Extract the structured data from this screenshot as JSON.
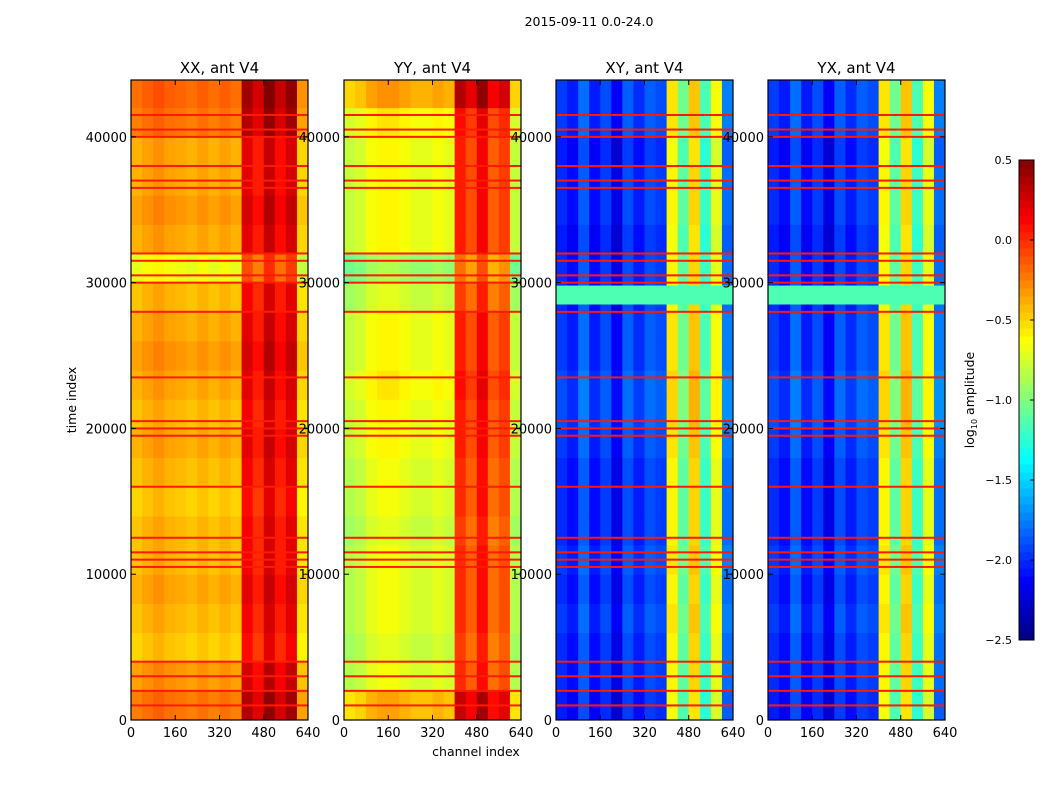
{
  "chart_data": {
    "type": "heatmap",
    "title": "2015-09-11 0.0-24.0",
    "xlabel": "channel index",
    "ylabel": "time index",
    "xlim": [
      0,
      640
    ],
    "ylim": [
      0,
      43900
    ],
    "xticks": [
      "0",
      "160",
      "320",
      "480",
      "640"
    ],
    "xtick_values": [
      0,
      160,
      320,
      480,
      640
    ],
    "yticks": [
      "0",
      "10000",
      "20000",
      "30000",
      "40000"
    ],
    "ytick_values": [
      0,
      10000,
      20000,
      30000,
      40000
    ],
    "colormap": "jet",
    "colorbar": {
      "label_main": "log",
      "label_sub": "10",
      "label_rest": " amplitude",
      "vmin": -2.5,
      "vmax": 0.5,
      "ticks": [
        "0.5",
        "0.0",
        "−0.5",
        "−1.0",
        "−1.5",
        "−2.0",
        "−2.5"
      ],
      "tick_values": [
        0.5,
        0.0,
        -0.5,
        -1.0,
        -1.5,
        -2.0,
        -2.5
      ],
      "placement": "right"
    },
    "channel_bin_width": 40,
    "time_bin_width": 2000,
    "flagged_rows": [
      1000,
      2000,
      3000,
      4000,
      10500,
      11000,
      11500,
      12500,
      16000,
      19500,
      20000,
      20500,
      23500,
      28000,
      30000,
      30500,
      31500,
      32000,
      36500,
      37000,
      38000,
      40000,
      40500,
      41500
    ],
    "panels": [
      {
        "title": "XX, ant V4",
        "channel_profile": [
          -0.45,
          -0.4,
          -0.35,
          -0.4,
          -0.42,
          -0.45,
          -0.4,
          -0.45,
          -0.4,
          -0.45,
          0.15,
          0.0,
          0.25,
          0.05,
          0.2,
          -0.55
        ],
        "time_offsets": [
          0.2,
          0.1,
          -0.05,
          0,
          0.05,
          0,
          0,
          -0.05,
          0,
          0.05,
          0,
          0.05,
          0.1,
          0.05,
          0.0,
          -0.25,
          0.05,
          0.1,
          0.05,
          0.05,
          0.2,
          0.25
        ],
        "overrides": []
      },
      {
        "title": "YY, ant V4",
        "channel_profile": [
          -0.85,
          -0.8,
          -0.7,
          -0.65,
          -0.65,
          -0.7,
          -0.75,
          -0.75,
          -0.7,
          -0.75,
          0.0,
          -0.15,
          0.1,
          -0.2,
          -0.1,
          -0.85
        ],
        "time_offsets": [
          0.3,
          0.0,
          -0.05,
          0,
          0,
          0,
          -0.05,
          0,
          0,
          0.05,
          0.05,
          0.1,
          0.05,
          0.05,
          -0.05,
          -0.2,
          0.05,
          0.05,
          0.05,
          0.05,
          0.1,
          0.35
        ],
        "overrides": []
      },
      {
        "title": "XY, ant V4",
        "channel_profile": [
          -2.0,
          -2.1,
          -1.85,
          -2.1,
          -1.95,
          -2.2,
          -1.9,
          -2.05,
          -1.9,
          -1.95,
          -0.6,
          -1.1,
          -0.5,
          -1.2,
          -0.7,
          -1.8
        ],
        "time_offsets": [
          -0.05,
          0,
          0,
          0.05,
          0,
          0.05,
          0,
          0,
          0,
          0.05,
          0.1,
          0.1,
          0.05,
          0.05,
          0,
          0,
          -0.05,
          0,
          0,
          -0.05,
          0.05,
          0.05
        ],
        "overrides": [
          {
            "t0": 28500,
            "t1": 29800,
            "value": -1.15
          }
        ]
      },
      {
        "title": "YX, ant V4",
        "channel_profile": [
          -2.0,
          -2.1,
          -1.85,
          -2.1,
          -1.95,
          -2.2,
          -1.9,
          -2.05,
          -1.9,
          -1.95,
          -0.6,
          -1.1,
          -0.5,
          -1.2,
          -0.7,
          -1.8
        ],
        "time_offsets": [
          -0.05,
          0,
          0,
          0.05,
          0,
          0.05,
          0,
          0,
          0,
          0.05,
          0.1,
          0.1,
          0.05,
          0.05,
          0,
          0,
          -0.05,
          0,
          0,
          -0.05,
          0.05,
          0.05
        ],
        "overrides": [
          {
            "t0": 28500,
            "t1": 29800,
            "value": -1.15
          }
        ]
      }
    ]
  }
}
